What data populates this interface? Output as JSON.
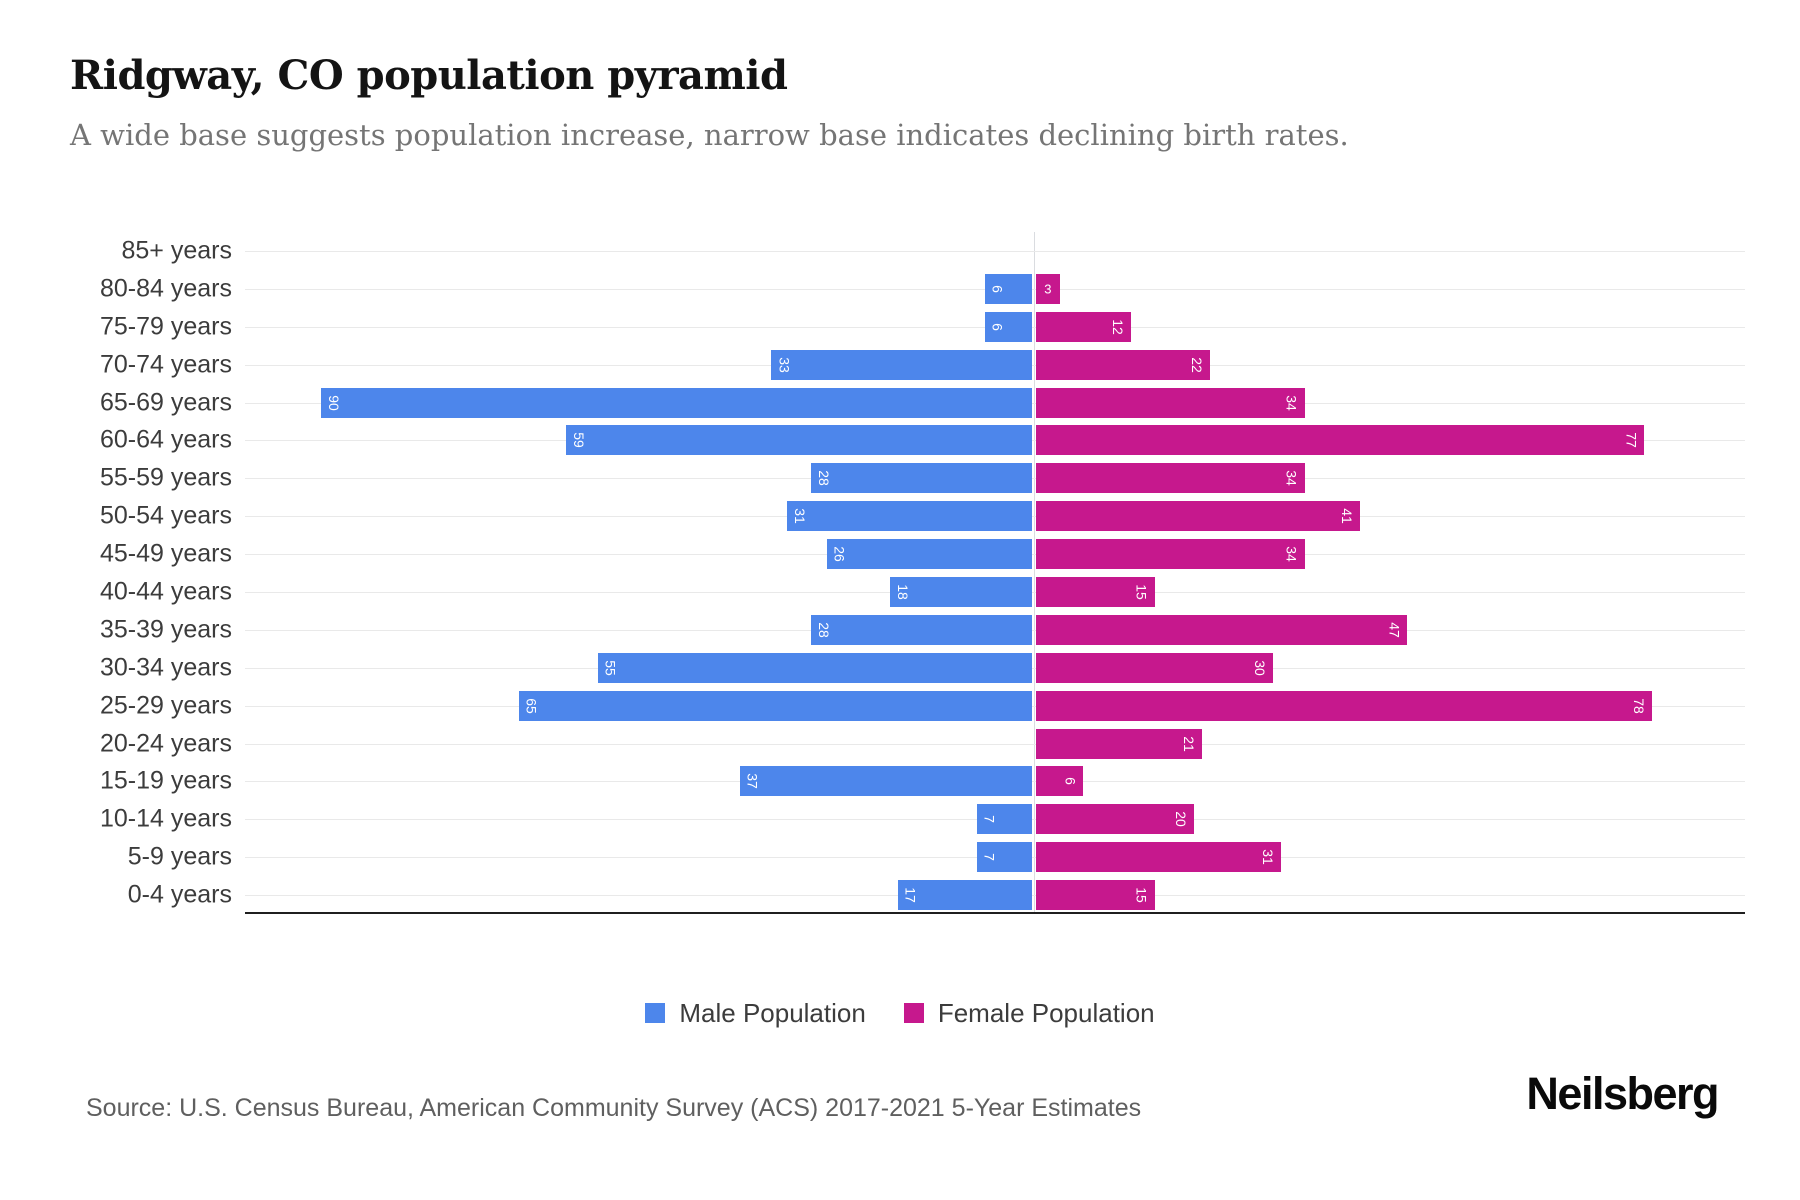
{
  "header": {
    "title": "Ridgway, CO population pyramid",
    "subtitle": "A wide base suggests population increase, narrow base indicates declining birth rates."
  },
  "legend": {
    "items": [
      {
        "label": "Male Population",
        "series": "male"
      },
      {
        "label": "Female Population",
        "series": "female"
      }
    ]
  },
  "colors": {
    "male": "#4d86eb",
    "female": "#c6188d",
    "gridline": "#e9e9e9",
    "axis": "#1f1f1f",
    "bar_label_text": "#ffffff"
  },
  "footer": {
    "source": "Source: U.S. Census Bureau, American Community Survey (ACS) 2017-2021 5-Year Estimates",
    "brand": "Neilsberg"
  },
  "chart_data": {
    "type": "bar",
    "subtype": "population-pyramid",
    "title": "Ridgway, CO population pyramid",
    "subtitle": "A wide base suggests population increase, narrow base indicates declining birth rates.",
    "orientation": "horizontal",
    "categories": [
      "85+ years",
      "80-84 years",
      "75-79 years",
      "70-74 years",
      "65-69 years",
      "60-64 years",
      "55-59 years",
      "50-54 years",
      "45-49 years",
      "40-44 years",
      "35-39 years",
      "30-34 years",
      "25-29 years",
      "20-24 years",
      "15-19 years",
      "10-14 years",
      "5-9 years",
      "0-4 years"
    ],
    "series": [
      {
        "name": "Male Population",
        "side": "left",
        "color": "#4d86eb",
        "values": [
          0,
          6,
          6,
          33,
          90,
          59,
          28,
          31,
          26,
          18,
          28,
          55,
          65,
          0,
          37,
          7,
          7,
          17
        ]
      },
      {
        "name": "Female Population",
        "side": "right",
        "color": "#c6188d",
        "values": [
          0,
          3,
          12,
          22,
          34,
          77,
          34,
          41,
          34,
          15,
          47,
          30,
          78,
          21,
          6,
          20,
          31,
          15
        ]
      }
    ],
    "value_axis_max_each_side": 90,
    "bar_labels": "value shown inside bar end, rotated 90deg",
    "grid": "horizontal category gridlines, center divider line",
    "legend_position": "bottom",
    "xlabel": "",
    "ylabel": ""
  }
}
